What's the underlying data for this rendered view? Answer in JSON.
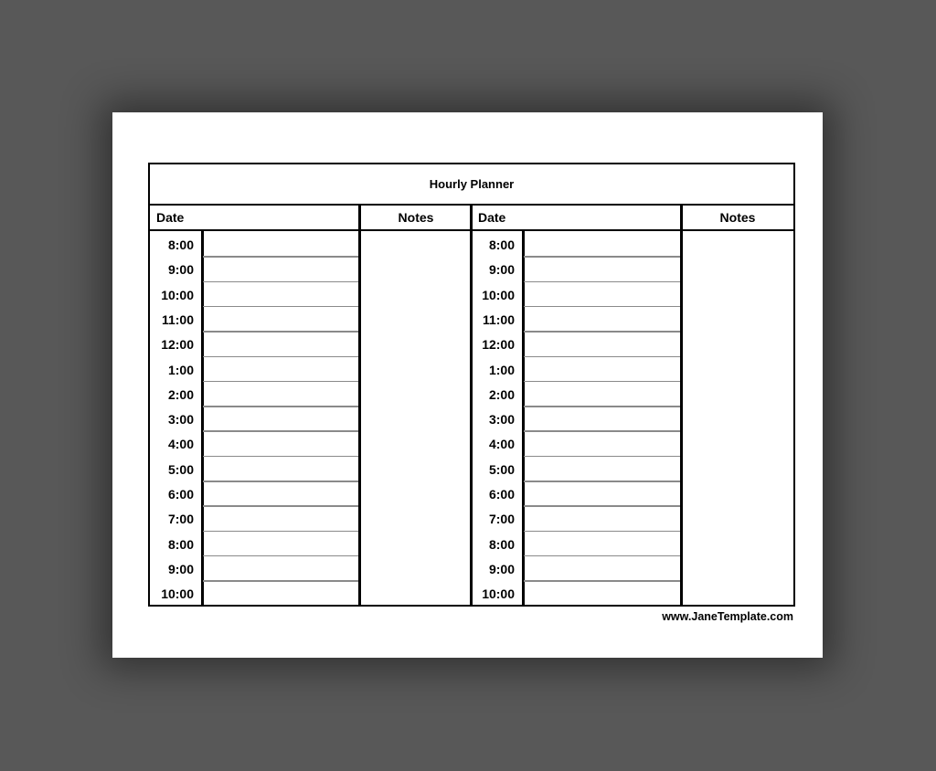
{
  "title": "Hourly Planner",
  "columns": [
    {
      "date_label": "Date",
      "notes_label": "Notes"
    },
    {
      "date_label": "Date",
      "notes_label": "Notes"
    }
  ],
  "times": [
    "8:00",
    "9:00",
    "10:00",
    "11:00",
    "12:00",
    "1:00",
    "2:00",
    "3:00",
    "4:00",
    "5:00",
    "6:00",
    "7:00",
    "8:00",
    "9:00",
    "10:00"
  ],
  "footer": "www.JaneTemplate.com"
}
